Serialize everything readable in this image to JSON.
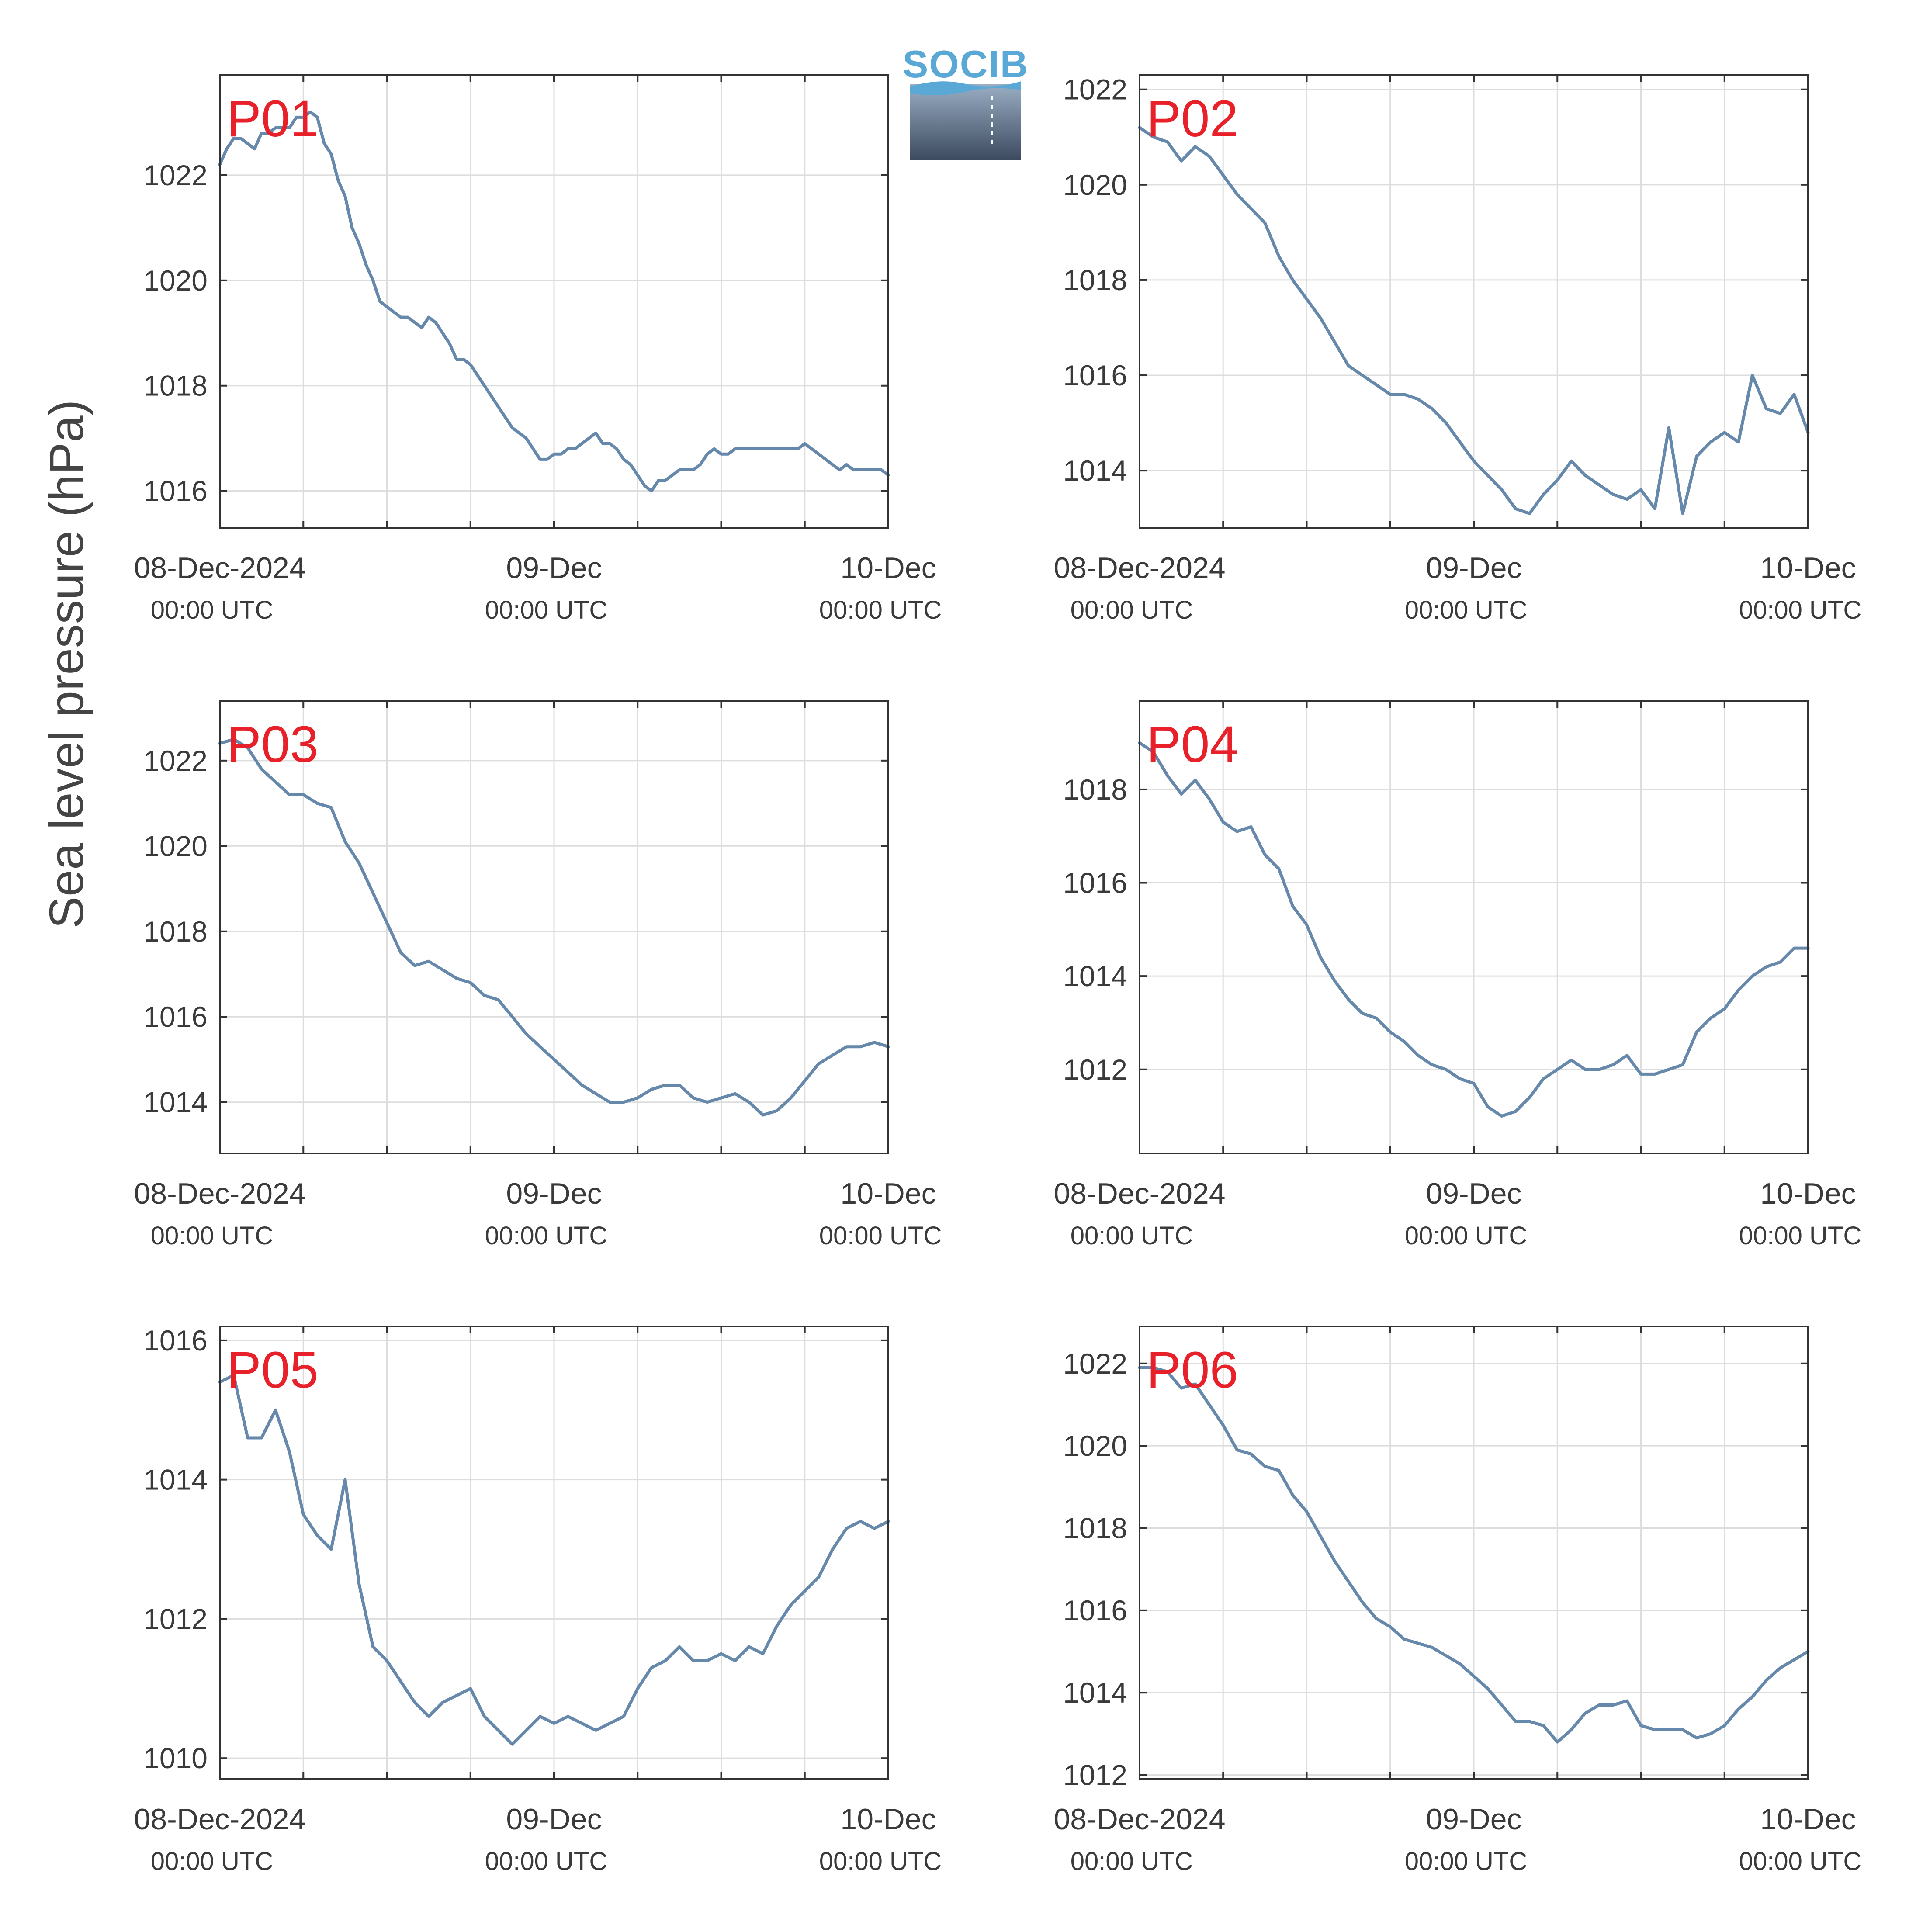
{
  "figure": {
    "ylabel": "Sea level pressure (hPa)",
    "logo": {
      "text": "SOCIB"
    },
    "line_color": "#6688aa",
    "label_color": "#e8202a"
  },
  "chart_data": [
    {
      "type": "line",
      "panel_label": "P01",
      "ylim": [
        1015.3,
        1023.9
      ],
      "yticks": [
        1016,
        1018,
        1020,
        1022
      ],
      "xlim": [
        0,
        48
      ],
      "xticks": [
        {
          "hour": 0,
          "label": "08-Dec-2024",
          "sublabel": "00:00 UTC"
        },
        {
          "hour": 24,
          "label": "09-Dec",
          "sublabel": "00:00 UTC"
        },
        {
          "hour": 48,
          "label": "10-Dec",
          "sublabel": "00:00 UTC"
        }
      ],
      "grid": true,
      "series": [
        {
          "x": [
            0,
            0.5,
            1,
            1.5,
            2,
            2.5,
            3,
            3.5,
            4,
            4.5,
            5,
            5.5,
            6,
            6.5,
            7,
            7.5,
            8,
            8.5,
            9,
            9.5,
            10,
            10.5,
            11,
            11.5,
            12,
            12.5,
            13,
            13.5,
            14,
            14.5,
            15,
            15.5,
            16,
            16.5,
            17,
            17.5,
            18,
            18.5,
            19,
            19.5,
            20,
            20.5,
            21,
            21.5,
            22,
            22.5,
            23,
            23.5,
            24,
            24.5,
            25,
            25.5,
            26,
            26.5,
            27,
            27.5,
            28,
            28.5,
            29,
            29.5,
            30,
            30.5,
            31,
            31.5,
            32,
            32.5,
            33,
            33.5,
            34,
            34.5,
            35,
            35.5,
            36,
            36.5,
            37,
            37.5,
            38,
            38.5,
            39,
            39.5,
            40,
            40.5,
            41,
            41.5,
            42,
            42.5,
            43,
            43.5,
            44,
            44.5,
            45,
            45.5,
            46,
            46.5,
            47,
            47.5,
            48
          ],
          "values": [
            1022.2,
            1022.5,
            1022.7,
            1022.7,
            1022.6,
            1022.5,
            1022.8,
            1022.8,
            1022.9,
            1022.9,
            1022.9,
            1023.1,
            1023.1,
            1023.2,
            1023.1,
            1022.6,
            1022.4,
            1021.9,
            1021.6,
            1021.0,
            1020.7,
            1020.3,
            1020.0,
            1019.6,
            1019.5,
            1019.4,
            1019.3,
            1019.3,
            1019.2,
            1019.1,
            1019.3,
            1019.2,
            1019.0,
            1018.8,
            1018.5,
            1018.5,
            1018.4,
            1018.2,
            1018.0,
            1017.8,
            1017.6,
            1017.4,
            1017.2,
            1017.1,
            1017.0,
            1016.8,
            1016.6,
            1016.6,
            1016.7,
            1016.7,
            1016.8,
            1016.8,
            1016.9,
            1017.0,
            1017.1,
            1016.9,
            1016.9,
            1016.8,
            1016.6,
            1016.5,
            1016.3,
            1016.1,
            1016.0,
            1016.2,
            1016.2,
            1016.3,
            1016.4,
            1016.4,
            1016.4,
            1016.5,
            1016.7,
            1016.8,
            1016.7,
            1016.7,
            1016.8,
            1016.8,
            1016.8,
            1016.8,
            1016.8,
            1016.8,
            1016.8,
            1016.8,
            1016.8,
            1016.8,
            1016.9,
            1016.8,
            1016.7,
            1016.6,
            1016.5,
            1016.4,
            1016.5,
            1016.4,
            1016.4,
            1016.4,
            1016.4,
            1016.4,
            1016.3
          ]
        }
      ]
    },
    {
      "type": "line",
      "panel_label": "P02",
      "ylim": [
        1012.8,
        1022.3
      ],
      "yticks": [
        1014,
        1016,
        1018,
        1020,
        1022
      ],
      "xlim": [
        0,
        48
      ],
      "xticks": [
        {
          "hour": 0,
          "label": "08-Dec-2024",
          "sublabel": "00:00 UTC"
        },
        {
          "hour": 24,
          "label": "09-Dec",
          "sublabel": "00:00 UTC"
        },
        {
          "hour": 48,
          "label": "10-Dec",
          "sublabel": "00:00 UTC"
        }
      ],
      "grid": true,
      "series": [
        {
          "x": [
            0,
            1,
            2,
            3,
            4,
            5,
            6,
            7,
            8,
            9,
            10,
            11,
            12,
            13,
            14,
            15,
            16,
            17,
            18,
            19,
            20,
            21,
            22,
            23,
            24,
            25,
            26,
            27,
            28,
            29,
            30,
            31,
            32,
            33,
            34,
            35,
            36,
            37,
            38,
            39,
            40,
            41,
            42,
            43,
            44,
            45,
            46,
            47,
            48
          ],
          "values": [
            1021.2,
            1021.0,
            1020.9,
            1020.5,
            1020.8,
            1020.6,
            1020.2,
            1019.8,
            1019.5,
            1019.2,
            1018.5,
            1018.0,
            1017.6,
            1017.2,
            1016.7,
            1016.2,
            1016.0,
            1015.8,
            1015.6,
            1015.6,
            1015.5,
            1015.3,
            1015.0,
            1014.6,
            1014.2,
            1013.9,
            1013.6,
            1013.2,
            1013.1,
            1013.5,
            1013.8,
            1014.2,
            1013.9,
            1013.7,
            1013.5,
            1013.4,
            1013.6,
            1013.2,
            1014.9,
            1013.1,
            1014.3,
            1014.6,
            1014.8,
            1014.6,
            1016.0,
            1015.3,
            1015.2,
            1015.6,
            1014.8
          ]
        }
      ]
    },
    {
      "type": "line",
      "panel_label": "P03",
      "ylim": [
        1012.8,
        1023.4
      ],
      "yticks": [
        1014,
        1016,
        1018,
        1020,
        1022
      ],
      "xlim": [
        0,
        48
      ],
      "xticks": [
        {
          "hour": 0,
          "label": "08-Dec-2024",
          "sublabel": "00:00 UTC"
        },
        {
          "hour": 24,
          "label": "09-Dec",
          "sublabel": "00:00 UTC"
        },
        {
          "hour": 48,
          "label": "10-Dec",
          "sublabel": "00:00 UTC"
        }
      ],
      "grid": true,
      "series": [
        {
          "x": [
            0,
            1,
            2,
            3,
            4,
            5,
            6,
            7,
            8,
            9,
            10,
            11,
            12,
            13,
            14,
            15,
            16,
            17,
            18,
            19,
            20,
            21,
            22,
            23,
            24,
            25,
            26,
            27,
            28,
            29,
            30,
            31,
            32,
            33,
            34,
            35,
            36,
            37,
            38,
            39,
            40,
            41,
            42,
            43,
            44,
            45,
            46,
            47,
            48
          ],
          "values": [
            1022.4,
            1022.5,
            1022.3,
            1021.8,
            1021.5,
            1021.2,
            1021.2,
            1021.0,
            1020.9,
            1020.1,
            1019.6,
            1018.9,
            1018.2,
            1017.5,
            1017.2,
            1017.3,
            1017.1,
            1016.9,
            1016.8,
            1016.5,
            1016.4,
            1016.0,
            1015.6,
            1015.3,
            1015.0,
            1014.7,
            1014.4,
            1014.2,
            1014.0,
            1014.0,
            1014.1,
            1014.3,
            1014.4,
            1014.4,
            1014.1,
            1014.0,
            1014.1,
            1014.2,
            1014.0,
            1013.7,
            1013.8,
            1014.1,
            1014.5,
            1014.9,
            1015.1,
            1015.3,
            1015.3,
            1015.4,
            1015.3
          ]
        }
      ]
    },
    {
      "type": "line",
      "panel_label": "P04",
      "ylim": [
        1010.2,
        1019.9
      ],
      "yticks": [
        1012,
        1014,
        1016,
        1018
      ],
      "xlim": [
        0,
        48
      ],
      "xticks": [
        {
          "hour": 0,
          "label": "08-Dec-2024",
          "sublabel": "00:00 UTC"
        },
        {
          "hour": 24,
          "label": "09-Dec",
          "sublabel": "00:00 UTC"
        },
        {
          "hour": 48,
          "label": "10-Dec",
          "sublabel": "00:00 UTC"
        }
      ],
      "grid": true,
      "series": [
        {
          "x": [
            0,
            1,
            2,
            3,
            4,
            5,
            6,
            7,
            8,
            9,
            10,
            11,
            12,
            13,
            14,
            15,
            16,
            17,
            18,
            19,
            20,
            21,
            22,
            23,
            24,
            25,
            26,
            27,
            28,
            29,
            30,
            31,
            32,
            33,
            34,
            35,
            36,
            37,
            38,
            39,
            40,
            41,
            42,
            43,
            44,
            45,
            46,
            47,
            48
          ],
          "values": [
            1019.0,
            1018.8,
            1018.3,
            1017.9,
            1018.2,
            1017.8,
            1017.3,
            1017.1,
            1017.2,
            1016.6,
            1016.3,
            1015.5,
            1015.1,
            1014.4,
            1013.9,
            1013.5,
            1013.2,
            1013.1,
            1012.8,
            1012.6,
            1012.3,
            1012.1,
            1012.0,
            1011.8,
            1011.7,
            1011.2,
            1011.0,
            1011.1,
            1011.4,
            1011.8,
            1012.0,
            1012.2,
            1012.0,
            1012.0,
            1012.1,
            1012.3,
            1011.9,
            1011.9,
            1012.0,
            1012.1,
            1012.8,
            1013.1,
            1013.3,
            1013.7,
            1014.0,
            1014.2,
            1014.3,
            1014.6,
            1014.6
          ]
        }
      ]
    },
    {
      "type": "line",
      "panel_label": "P05",
      "ylim": [
        1009.7,
        1016.2
      ],
      "yticks": [
        1010,
        1012,
        1014,
        1016
      ],
      "xlim": [
        0,
        48
      ],
      "xticks": [
        {
          "hour": 0,
          "label": "08-Dec-2024",
          "sublabel": "00:00 UTC"
        },
        {
          "hour": 24,
          "label": "09-Dec",
          "sublabel": "00:00 UTC"
        },
        {
          "hour": 48,
          "label": "10-Dec",
          "sublabel": "00:00 UTC"
        }
      ],
      "grid": true,
      "series": [
        {
          "x": [
            0,
            1,
            2,
            3,
            4,
            5,
            6,
            7,
            8,
            9,
            10,
            11,
            12,
            13,
            14,
            15,
            16,
            17,
            18,
            19,
            20,
            21,
            22,
            23,
            24,
            25,
            26,
            27,
            28,
            29,
            30,
            31,
            32,
            33,
            34,
            35,
            36,
            37,
            38,
            39,
            40,
            41,
            42,
            43,
            44,
            45,
            46,
            47,
            48
          ],
          "values": [
            1015.4,
            1015.5,
            1014.6,
            1014.6,
            1015.0,
            1014.4,
            1013.5,
            1013.2,
            1013.0,
            1014.0,
            1012.5,
            1011.6,
            1011.4,
            1011.1,
            1010.8,
            1010.6,
            1010.8,
            1010.9,
            1011.0,
            1010.6,
            1010.4,
            1010.2,
            1010.4,
            1010.6,
            1010.5,
            1010.6,
            1010.5,
            1010.4,
            1010.5,
            1010.6,
            1011.0,
            1011.3,
            1011.4,
            1011.6,
            1011.4,
            1011.4,
            1011.5,
            1011.4,
            1011.6,
            1011.5,
            1011.9,
            1012.2,
            1012.4,
            1012.6,
            1013.0,
            1013.3,
            1013.4,
            1013.3,
            1013.4
          ]
        }
      ]
    },
    {
      "type": "line",
      "panel_label": "P06",
      "ylim": [
        1011.9,
        1022.9
      ],
      "yticks": [
        1012,
        1014,
        1016,
        1018,
        1020,
        1022
      ],
      "xlim": [
        0,
        48
      ],
      "xticks": [
        {
          "hour": 0,
          "label": "08-Dec-2024",
          "sublabel": "00:00 UTC"
        },
        {
          "hour": 24,
          "label": "09-Dec",
          "sublabel": "00:00 UTC"
        },
        {
          "hour": 48,
          "label": "10-Dec",
          "sublabel": "00:00 UTC"
        }
      ],
      "grid": true,
      "series": [
        {
          "x": [
            0,
            1,
            2,
            3,
            4,
            5,
            6,
            7,
            8,
            9,
            10,
            11,
            12,
            13,
            14,
            15,
            16,
            17,
            18,
            19,
            20,
            21,
            22,
            23,
            24,
            25,
            26,
            27,
            28,
            29,
            30,
            31,
            32,
            33,
            34,
            35,
            36,
            37,
            38,
            39,
            40,
            41,
            42,
            43,
            44,
            45,
            46,
            47,
            48
          ],
          "values": [
            1021.9,
            1021.9,
            1021.8,
            1021.4,
            1021.5,
            1021.0,
            1020.5,
            1019.9,
            1019.8,
            1019.5,
            1019.4,
            1018.8,
            1018.4,
            1017.8,
            1017.2,
            1016.7,
            1016.2,
            1015.8,
            1015.6,
            1015.3,
            1015.2,
            1015.1,
            1014.9,
            1014.7,
            1014.4,
            1014.1,
            1013.7,
            1013.3,
            1013.3,
            1013.2,
            1012.8,
            1013.1,
            1013.5,
            1013.7,
            1013.7,
            1013.8,
            1013.2,
            1013.1,
            1013.1,
            1013.1,
            1012.9,
            1013.0,
            1013.2,
            1013.6,
            1013.9,
            1014.3,
            1014.6,
            1014.8,
            1015.0
          ]
        }
      ]
    }
  ]
}
